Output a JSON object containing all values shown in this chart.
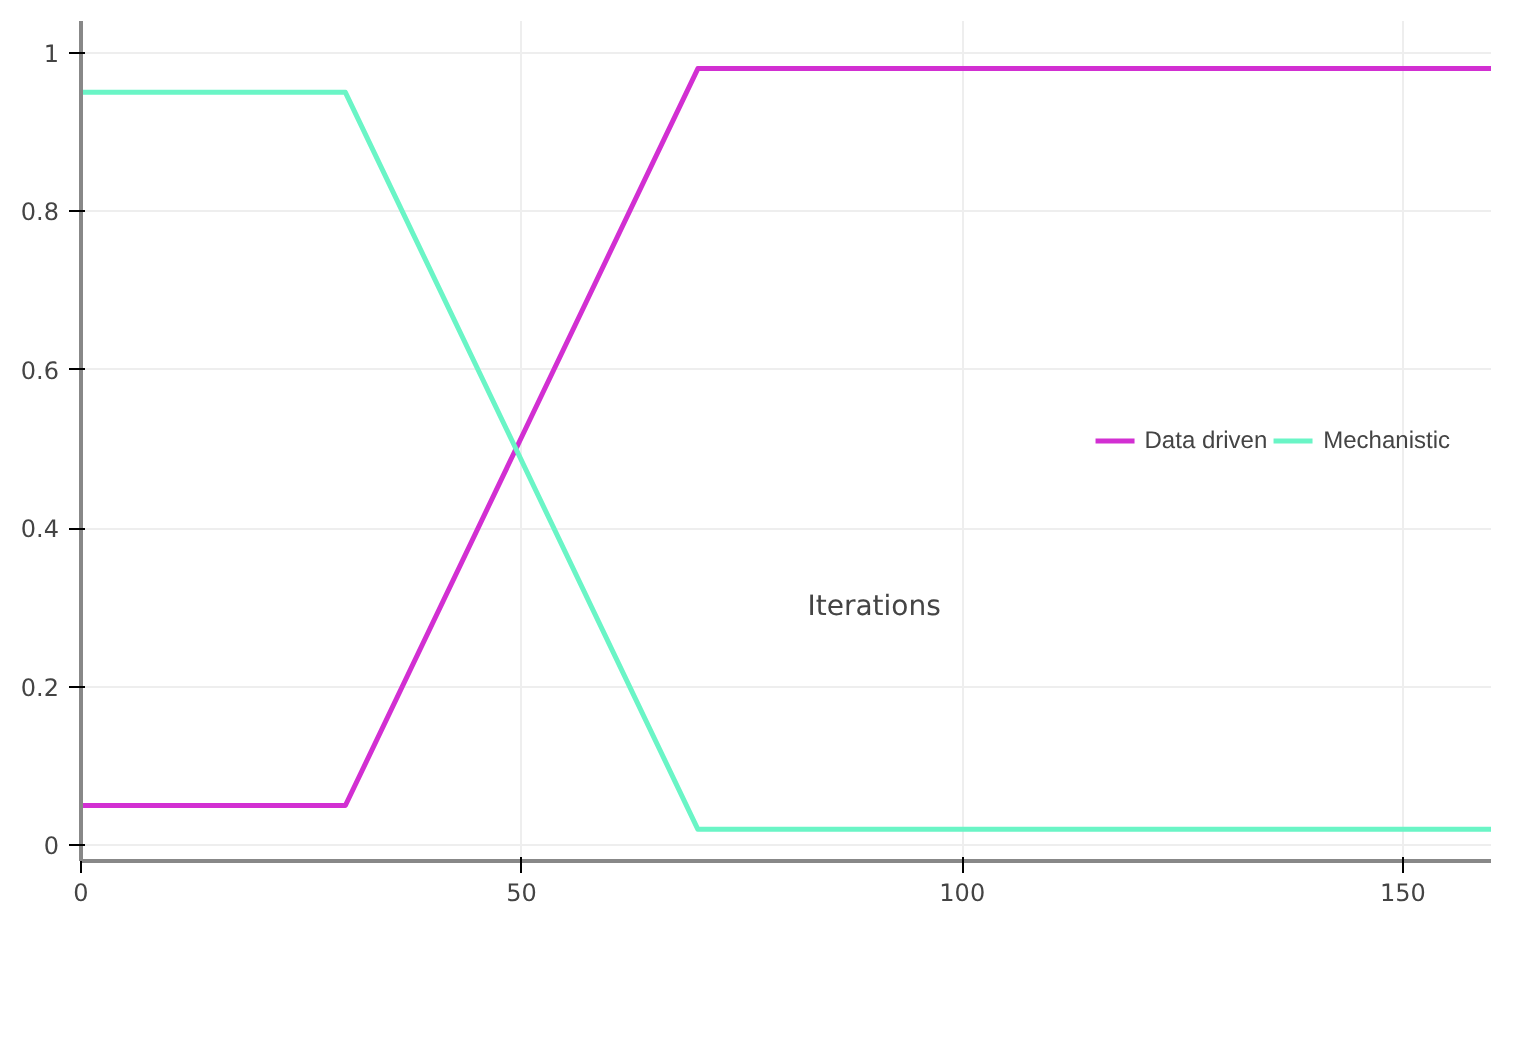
{
  "chart_data": {
    "type": "line",
    "xlabel": "Iterations",
    "x": [
      0,
      30,
      70,
      160
    ],
    "series": [
      {
        "name": "Data driven",
        "color": "#d22fd2",
        "values": [
          0.05,
          0.05,
          0.98,
          0.98
        ]
      },
      {
        "name": "Mechanistic",
        "color": "#6af5c6",
        "values": [
          0.95,
          0.95,
          0.02,
          0.02
        ]
      }
    ],
    "xlim": [
      0,
      160
    ],
    "ylim": [
      -0.02,
      1.04
    ],
    "xticks": [
      0,
      50,
      100,
      150
    ],
    "yticks": [
      0,
      0.2,
      0.4,
      0.6,
      0.8,
      1
    ],
    "grid": true,
    "legend": "right",
    "marker": "none",
    "line_style": "solid"
  }
}
